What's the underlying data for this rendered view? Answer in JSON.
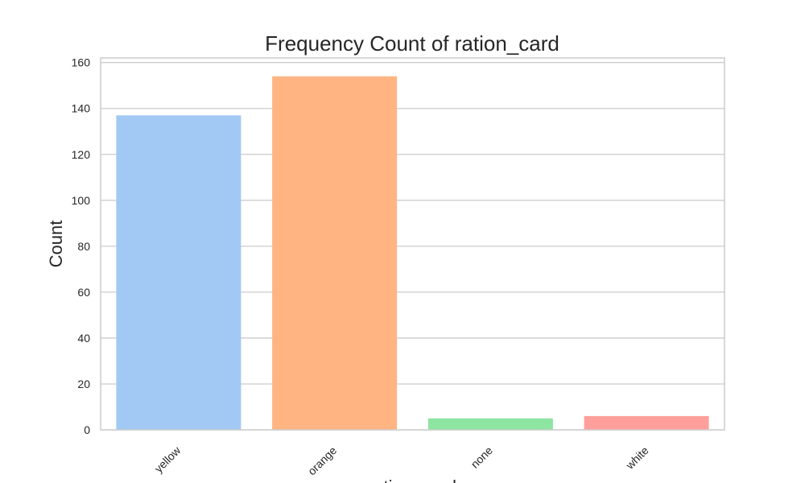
{
  "chart_data": {
    "type": "bar",
    "title": "Frequency Count of ration_card",
    "xlabel": "ration_card",
    "ylabel": "Count",
    "categories": [
      "yellow",
      "orange",
      "none",
      "white"
    ],
    "values": [
      137,
      154,
      5,
      6
    ],
    "colors": [
      "#a1c9f4",
      "#ffb482",
      "#8de5a1",
      "#ff9f9b"
    ],
    "ylim": [
      0,
      162
    ],
    "yticks": [
      0,
      20,
      40,
      60,
      80,
      100,
      120,
      140,
      160
    ],
    "grid": true,
    "legend": "none"
  }
}
